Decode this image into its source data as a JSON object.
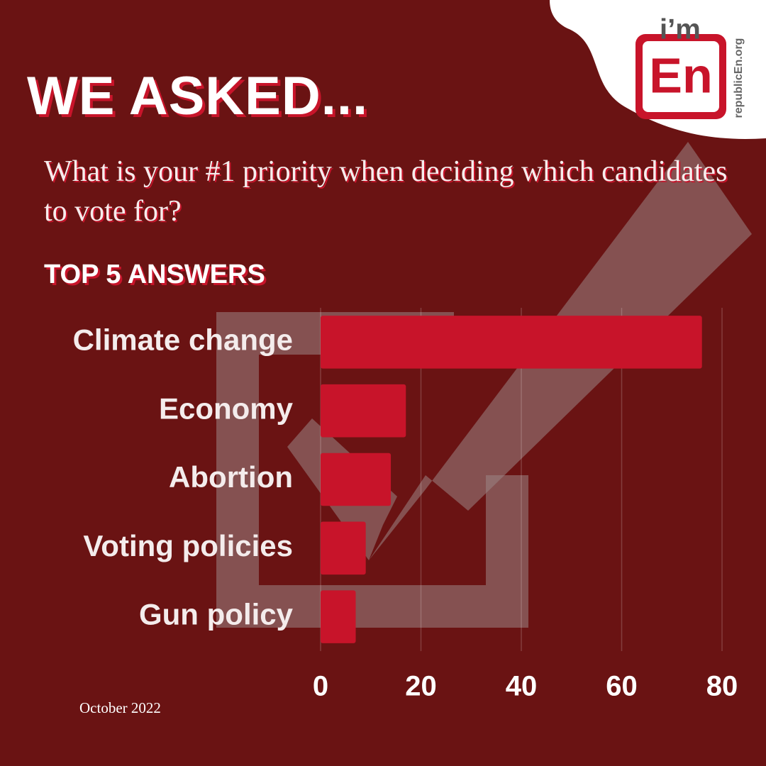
{
  "chart_data": {
    "type": "bar",
    "orientation": "horizontal",
    "title": "WE ASKED...",
    "subtitle": "What is your #1 priority when deciding which candidates to vote for?",
    "heading": "TOP 5 ANSWERS",
    "footnote": "October 2022",
    "categories": [
      "Climate change",
      "Economy",
      "Abortion",
      "Voting policies",
      "Gun policy"
    ],
    "values": [
      76,
      17,
      14,
      9,
      7
    ],
    "color": "#c8142a",
    "xlim": [
      0,
      80
    ],
    "xticks": [
      0,
      20,
      40,
      60,
      80
    ],
    "grid": true
  },
  "logo": {
    "top": "i’m",
    "main": "En",
    "url": "republicEn.org"
  }
}
